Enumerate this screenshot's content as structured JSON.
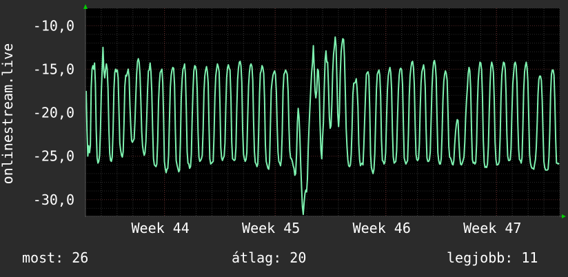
{
  "chart_data": {
    "type": "line",
    "ylabel": "onlinestream.live",
    "ylim": [
      -32,
      -8
    ],
    "yticks": [
      -10,
      -15,
      -20,
      -25,
      -30
    ],
    "ytick_labels": [
      "-10,0",
      "-15,0",
      "-20,0",
      "-25,0",
      "-30,0"
    ],
    "x_range_days": [
      0,
      30
    ],
    "xticks": [
      {
        "label": "Week 44",
        "day": 5
      },
      {
        "label": "Week 45",
        "day": 12
      },
      {
        "label": "Week 46",
        "day": 19
      },
      {
        "label": "Week 47",
        "day": 26
      }
    ],
    "grid": true,
    "colors": {
      "background": "#2b2b2b",
      "plot": "#000000",
      "line": "#7ef2b0",
      "grid": "#3a3a3a",
      "axis_arrow": "#00cc00"
    },
    "series": [
      {
        "values": [
          -17.5,
          -22,
          -25,
          -23.8,
          -24.6,
          -23.8,
          -17.2,
          -15,
          -14.6,
          -15,
          -14.3,
          -16.7,
          -22,
          -25.2,
          -25.8,
          -25.6,
          -24.9,
          -21.8,
          -17.6,
          -15.1,
          -12.5,
          -15.1,
          -16,
          -15.1,
          -14.4,
          -15,
          -17.2,
          -22,
          -24.7,
          -25.5,
          -25.6,
          -25.1,
          -21.9,
          -17.3,
          -15.4,
          -15,
          -15.3,
          -15.1,
          -16,
          -19.8,
          -23.5,
          -24.3,
          -24.9,
          -25.1,
          -24.5,
          -21.2,
          -17,
          -15.7,
          -15.8,
          -15.4,
          -15,
          -15.9,
          -19.2,
          -21.5,
          -23.2,
          -23.4,
          -23.2,
          -23,
          -21,
          -18.2,
          -15.6,
          -14.1,
          -13.8,
          -14.2,
          -15.6,
          -18.5,
          -22.2,
          -23.8,
          -24.5,
          -24.9,
          -24.6,
          -23.3,
          -20.5,
          -17.3,
          -15.2,
          -15.1,
          -14.3,
          -15.3,
          -17.6,
          -21.8,
          -25.3,
          -26,
          -26.1,
          -26.2,
          -25.9,
          -23.2,
          -18.7,
          -16.6,
          -15.4,
          -15.2,
          -15,
          -16.5,
          -20.5,
          -25.6,
          -26.4,
          -26.9,
          -26.5,
          -26.4,
          -24.9,
          -20.9,
          -17.1,
          -15.7,
          -15.1,
          -14.8,
          -14.9,
          -16.8,
          -22,
          -25.5,
          -26,
          -26.4,
          -26.8,
          -26.6,
          -23.4,
          -18.4,
          -16.2,
          -15,
          -14.8,
          -14.4,
          -15.6,
          -19.7,
          -24.5,
          -25.8,
          -25.9,
          -26.4,
          -26.2,
          -24.8,
          -20.6,
          -17.4,
          -15.2,
          -14.6,
          -14.7,
          -15.2,
          -17.4,
          -22.2,
          -25.1,
          -25.6,
          -25.5,
          -25.3,
          -24.9,
          -21.9,
          -17.6,
          -15.8,
          -15.1,
          -14.7,
          -15.3,
          -16.6,
          -21.4,
          -25.3,
          -25.9,
          -25.8,
          -25.7,
          -25.6,
          -22.6,
          -18.1,
          -15.8,
          -15,
          -14.4,
          -14.7,
          -15.3,
          -19,
          -24,
          -25.2,
          -25.5,
          -25.2,
          -25,
          -23.5,
          -19.3,
          -16,
          -14.8,
          -14.5,
          -14.9,
          -15.1,
          -18.2,
          -23.4,
          -25.3,
          -25.4,
          -25.5,
          -25.4,
          -24,
          -19.5,
          -16.2,
          -14.9,
          -14.2,
          -14.1,
          -14.6,
          -16.5,
          -21.9,
          -24.8,
          -25.3,
          -25.6,
          -25.4,
          -24.6,
          -20.4,
          -16.9,
          -15.4,
          -14.6,
          -14.4,
          -14.7,
          -16.3,
          -21.1,
          -24.5,
          -25.7,
          -25.9,
          -26.2,
          -25.9,
          -22.4,
          -17.8,
          -15.5,
          -15.2,
          -14.6,
          -14.8,
          -15.5,
          -18.5,
          -23.7,
          -25.6,
          -26,
          -26.4,
          -26.5,
          -25.6,
          -21.4,
          -17.4,
          -16.4,
          -15.7,
          -15.4,
          -15.2,
          -15.6,
          -17.6,
          -21.6,
          -24.5,
          -25.6,
          -25.8,
          -26.1,
          -25.3,
          -22.4,
          -17.5,
          -15.6,
          -15.4,
          -15.1,
          -15.3,
          -15.6,
          -17.6,
          -21.7,
          -24.4,
          -25.2,
          -25.3,
          -25.6,
          -26.1,
          -26.4,
          -27.2,
          -27,
          -24.8,
          -21.2,
          -19.5,
          -20.5,
          -22.7,
          -26.1,
          -28.6,
          -30.8,
          -31.7,
          -30.4,
          -29.3,
          -28.9,
          -29.1,
          -27.6,
          -24,
          -21.3,
          -19.2,
          -17.2,
          -15.4,
          -14.2,
          -12.3,
          -14.8,
          -17.5,
          -18.3,
          -17.5,
          -15,
          -15.2,
          -17.1,
          -21.3,
          -24.3,
          -25.3,
          -22.8,
          -21.1,
          -17.2,
          -13.9,
          -12.9,
          -14.2,
          -14.2,
          -16.9,
          -20.5,
          -21.8,
          -21.5,
          -19.1,
          -15.4,
          -13.3,
          -12.4,
          -11.3,
          -12.3,
          -16.3,
          -20.2,
          -21.6,
          -20,
          -15.6,
          -13,
          -12.1,
          -11.5,
          -11.6,
          -13.6,
          -17.7,
          -21.8,
          -23.9,
          -25.4,
          -26.1,
          -26.2,
          -26,
          -24.8,
          -21.9,
          -17.9,
          -16.6,
          -16.6,
          -16.5,
          -16.1,
          -17.2,
          -19.3,
          -23.6,
          -25.4,
          -26.1,
          -25.9,
          -25.8,
          -26,
          -23.8,
          -20.9,
          -17.8,
          -15.6,
          -15.4,
          -15.3,
          -15.8,
          -19.6,
          -24.8,
          -26.3,
          -26.7,
          -27,
          -26.5,
          -24.8,
          -21.2,
          -17.3,
          -15.6,
          -15.3,
          -15.1,
          -15.7,
          -18,
          -23.1,
          -25.5,
          -25.6,
          -25.9,
          -25.7,
          -24.6,
          -20.6,
          -17.4,
          -15.8,
          -15.2,
          -14.8,
          -15.4,
          -17.3,
          -22.1,
          -25.1,
          -25.8,
          -25.7,
          -25.6,
          -24.4,
          -20.8,
          -17.5,
          -15.7,
          -15,
          -14.9,
          -15.1,
          -16.8,
          -21.4,
          -25.2,
          -25.6,
          -25.9,
          -25.7,
          -25.5,
          -22.5,
          -18.1,
          -15.8,
          -14.8,
          -14.2,
          -14.1,
          -14.8,
          -16.7,
          -21.5,
          -24.8,
          -25.4,
          -25.5,
          -25.3,
          -23.6,
          -19.5,
          -16.6,
          -15.3,
          -14.9,
          -14.5,
          -15.1,
          -17.1,
          -21.8,
          -25.2,
          -25.6,
          -25.6,
          -25.4,
          -24.5,
          -20.6,
          -17.1,
          -15.2,
          -14.2,
          -14,
          -14.6,
          -16,
          -20.6,
          -24.6,
          -25.5,
          -25.9,
          -25.9,
          -25.3,
          -22.5,
          -18.5,
          -16.4,
          -15.6,
          -15.2,
          -15.5,
          -16.3,
          -20,
          -23.9,
          -25.1,
          -25.2,
          -25.5,
          -25.9,
          -26,
          -25.5,
          -23.7,
          -22.2,
          -21.3,
          -20.8,
          -20.9,
          -23.2,
          -25.1,
          -25.9,
          -26,
          -25.8,
          -25.5,
          -25.1,
          -23.4,
          -20.6,
          -18.7,
          -17.2,
          -15.5,
          -14.8,
          -15.2,
          -17.2,
          -22.2,
          -25.4,
          -25.8,
          -25.7,
          -25.9,
          -25.7,
          -23.6,
          -19,
          -16.3,
          -15,
          -14.2,
          -14.3,
          -15.1,
          -18.1,
          -23.1,
          -25.7,
          -26.3,
          -26.2,
          -26.3,
          -25.9,
          -23.9,
          -20,
          -16.8,
          -14.8,
          -14.2,
          -14.6,
          -15.4,
          -18.5,
          -23.4,
          -25.4,
          -26,
          -26,
          -25.9,
          -25.6,
          -22.8,
          -18.3,
          -15.7,
          -14.8,
          -14.2,
          -14.3,
          -15,
          -17.7,
          -22.4,
          -25,
          -25.5,
          -25.5,
          -25.4,
          -24.1,
          -20.1,
          -16.7,
          -15.5,
          -14.4,
          -14.2,
          -14.6,
          -16.6,
          -21.2,
          -24.2,
          -25.4,
          -25.5,
          -25.8,
          -25.2,
          -21.8,
          -17.5,
          -15.3,
          -14.6,
          -14.2,
          -14.8,
          -16.4,
          -20.7,
          -24.8,
          -25.8,
          -26.2,
          -26.4,
          -26.4,
          -26.5,
          -25.9,
          -25.4,
          -24,
          -21.2,
          -17.9,
          -16.2,
          -15.8,
          -15.8,
          -16.3,
          -18.6,
          -22.4,
          -25.6,
          -26.3,
          -26.6,
          -26.6,
          -26.6,
          -26.5,
          -25.1,
          -22.1,
          -17.8,
          -15.6,
          -15.1,
          -15.1,
          -15.7,
          -18.6,
          -23,
          -25.8,
          -25.8,
          -25.9,
          -25.8
        ]
      }
    ]
  },
  "stats": {
    "current": "most: 26",
    "average": "átlag: 20",
    "best": "legjobb: 11"
  }
}
